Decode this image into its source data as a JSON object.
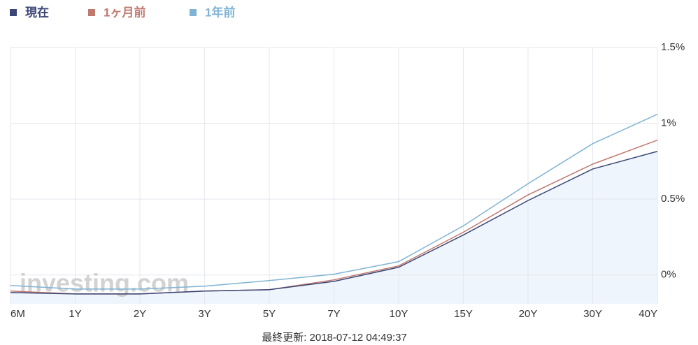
{
  "chart_data": {
    "type": "line",
    "categories": [
      "6M",
      "1Y",
      "2Y",
      "3Y",
      "5Y",
      "7Y",
      "10Y",
      "15Y",
      "20Y",
      "30Y",
      "40Y"
    ],
    "series": [
      {
        "name": "現在",
        "color": "#3b4676",
        "values": [
          -0.116,
          -0.125,
          -0.125,
          -0.106,
          -0.097,
          -0.042,
          0.051,
          0.264,
          0.491,
          0.699,
          0.815
        ]
      },
      {
        "name": "1ヶ月前",
        "color": "#c0796f",
        "values": [
          -0.106,
          -0.125,
          -0.125,
          -0.106,
          -0.097,
          -0.032,
          0.06,
          0.282,
          0.528,
          0.731,
          0.889
        ]
      },
      {
        "name": "1年前",
        "color": "#7fb3d3",
        "values": [
          -0.069,
          -0.093,
          -0.093,
          -0.074,
          -0.037,
          0.005,
          0.088,
          0.324,
          0.602,
          0.866,
          1.06
        ]
      }
    ],
    "area_color": "#eef5fc",
    "ylim": [
      -0.19,
      1.5
    ],
    "yticks": [
      {
        "value": 0,
        "label": "0%"
      },
      {
        "value": 0.5,
        "label": "0.5%"
      },
      {
        "value": 1,
        "label": "1%"
      },
      {
        "value": 1.5,
        "label": "1.5%"
      }
    ],
    "grid": true,
    "watermark": "investing.com",
    "footer": "最終更新: 2018-07-12 04:49:37"
  }
}
